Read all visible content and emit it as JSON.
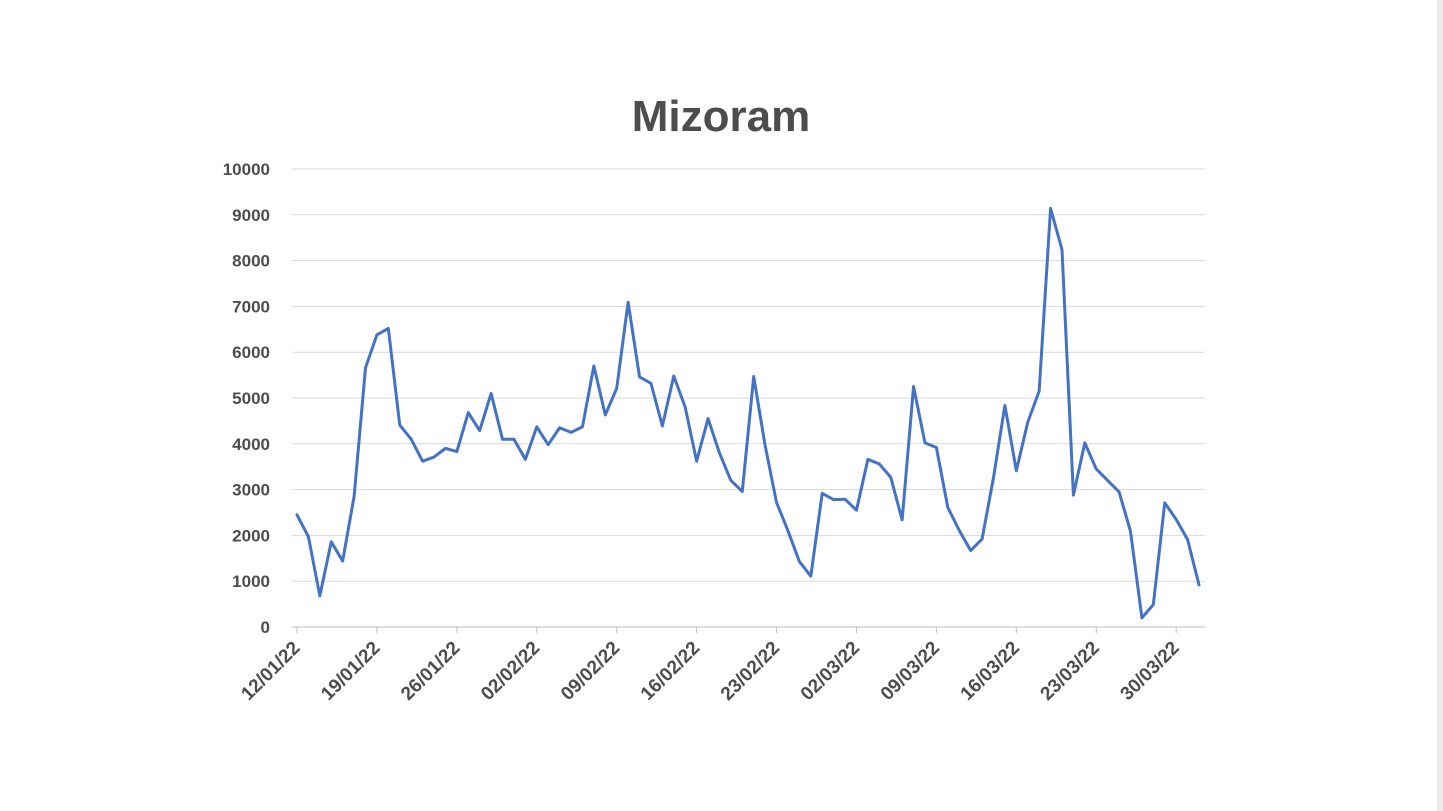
{
  "chart_data": {
    "type": "line",
    "title": "Mizoram",
    "xlabel": "",
    "ylabel": "",
    "ylim": [
      0,
      10000
    ],
    "yticks": [
      0,
      1000,
      2000,
      3000,
      4000,
      5000,
      6000,
      7000,
      8000,
      9000,
      10000
    ],
    "ytick_labels": [
      "0",
      "1000",
      "2000",
      "3000",
      "4000",
      "5000",
      "6000",
      "7000",
      "8000",
      "9000",
      "10000"
    ],
    "xtick_labels": [
      "12/01/22",
      "19/01/22",
      "26/01/22",
      "02/02/22",
      "09/02/22",
      "16/02/22",
      "23/02/22",
      "02/03/22",
      "09/03/22",
      "16/03/22",
      "23/03/22",
      "30/03/22"
    ],
    "grid": true,
    "legend": "none",
    "line_color": "#4472C4",
    "x": [
      "12/01/22",
      "13/01/22",
      "14/01/22",
      "15/01/22",
      "16/01/22",
      "17/01/22",
      "18/01/22",
      "19/01/22",
      "20/01/22",
      "21/01/22",
      "22/01/22",
      "23/01/22",
      "24/01/22",
      "25/01/22",
      "26/01/22",
      "27/01/22",
      "28/01/22",
      "29/01/22",
      "30/01/22",
      "31/01/22",
      "01/02/22",
      "02/02/22",
      "03/02/22",
      "04/02/22",
      "05/02/22",
      "06/02/22",
      "07/02/22",
      "08/02/22",
      "09/02/22",
      "10/02/22",
      "11/02/22",
      "12/02/22",
      "13/02/22",
      "14/02/22",
      "15/02/22",
      "16/02/22",
      "17/02/22",
      "18/02/22",
      "19/02/22",
      "20/02/22",
      "21/02/22",
      "22/02/22",
      "23/02/22",
      "24/02/22",
      "25/02/22",
      "26/02/22",
      "27/02/22",
      "28/02/22",
      "01/03/22",
      "02/03/22",
      "03/03/22",
      "04/03/22",
      "05/03/22",
      "06/03/22",
      "07/03/22",
      "08/03/22",
      "09/03/22",
      "10/03/22",
      "11/03/22",
      "12/03/22",
      "13/03/22",
      "14/03/22",
      "15/03/22",
      "16/03/22",
      "17/03/22",
      "18/03/22",
      "19/03/22",
      "20/03/22",
      "21/03/22",
      "22/03/22",
      "23/03/22",
      "24/03/22",
      "25/03/22",
      "26/03/22",
      "27/03/22",
      "28/03/22",
      "29/03/22",
      "30/03/22",
      "31/03/22",
      "01/04/22"
    ],
    "series": [
      {
        "values": [
          2450,
          1970,
          680,
          1860,
          1440,
          2850,
          5660,
          6380,
          6520,
          4410,
          4100,
          3620,
          3710,
          3900,
          3830,
          4680,
          4290,
          5100,
          4100,
          4100,
          3660,
          4370,
          3980,
          4350,
          4250,
          4370,
          5700,
          4630,
          5210,
          7090,
          5460,
          5320,
          4390,
          5480,
          4800,
          3620,
          4550,
          3800,
          3200,
          2960,
          5470,
          3960,
          2720,
          2100,
          1430,
          1110,
          2920,
          2780,
          2790,
          2550,
          3660,
          3560,
          3270,
          2340,
          5250,
          4020,
          3920,
          2610,
          2110,
          1670,
          1920,
          3260,
          4840,
          3410,
          4470,
          5150,
          9140,
          8240,
          2880,
          4020,
          3450,
          3200,
          2950,
          2090,
          200,
          490,
          2710,
          2350,
          1910,
          920
        ]
      }
    ]
  }
}
